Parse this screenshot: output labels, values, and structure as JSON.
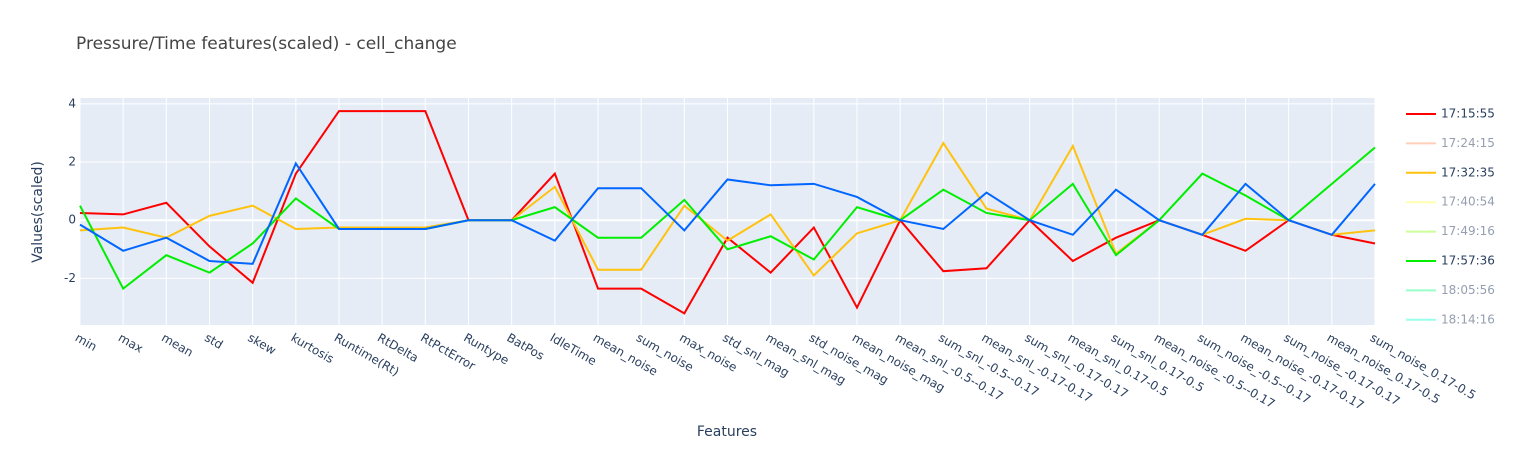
{
  "chart_data": {
    "type": "line",
    "title": "Pressure/Time features(scaled) - cell_change",
    "x_label": "Features",
    "y_label": "Values(scaled)",
    "categories": [
      "min",
      "max",
      "mean",
      "std",
      "skew",
      "kurtosis",
      "Runtime(Rt)",
      "RtDelta",
      "RtPctError",
      "Runtype",
      "BatPos",
      "IdleTime",
      "mean_noise",
      "sum_noise",
      "max_noise",
      "std_snl_mag",
      "mean_snl_mag",
      "std_noise_mag",
      "mean_noise_mag",
      "mean_snl_-0.5--0.17",
      "sum_snl_-0.5--0.17",
      "mean_snl_-0.17-0.17",
      "sum_snl_-0.17-0.17",
      "mean_snl_0.17-0.5",
      "sum_snl_0.17-0.5",
      "mean_noise_-0.5--0.17",
      "sum_noise_-0.5--0.17",
      "mean_noise_-0.17-0.17",
      "sum_noise_-0.17-0.17",
      "mean_noise_0.17-0.5",
      "sum_noise_0.17-0.5"
    ],
    "ylim": [
      -3.6,
      4.2
    ],
    "yticks": [
      -2,
      0,
      2,
      4
    ],
    "grid": true,
    "legend": "right",
    "series": [
      {
        "name": "17:15:55",
        "color": "#ff0000",
        "values": [
          0.25,
          0.2,
          0.6,
          -0.9,
          -2.15,
          1.6,
          3.75,
          3.75,
          3.75,
          0,
          0,
          1.6,
          -2.35,
          -2.35,
          -3.2,
          -0.6,
          -1.8,
          -0.25,
          -3.0,
          0,
          -1.75,
          -1.65,
          0,
          -1.4,
          -0.6,
          0,
          -0.5,
          -1.05,
          0,
          -0.5,
          -0.8
        ]
      },
      {
        "name": "17:24:15",
        "color": "#ffa07a",
        "visible": "legendonly"
      },
      {
        "name": "17:32:35",
        "color": "#ffc20e",
        "values": [
          -0.35,
          -0.25,
          -0.6,
          0.15,
          0.5,
          -0.3,
          -0.25,
          -0.25,
          -0.25,
          0,
          0,
          1.15,
          -1.7,
          -1.7,
          0.5,
          -0.7,
          0.2,
          -1.9,
          -0.45,
          0,
          2.65,
          0.4,
          0,
          2.55,
          -1.15,
          0,
          -0.5,
          0.05,
          0,
          -0.5,
          -0.35
        ]
      },
      {
        "name": "17:40:54",
        "color": "#ffff66",
        "visible": "legendonly"
      },
      {
        "name": "17:49:16",
        "color": "#99ff33",
        "visible": "legendonly"
      },
      {
        "name": "17:57:36",
        "color": "#00ee00",
        "values": [
          0.5,
          -2.35,
          -1.2,
          -1.8,
          -0.8,
          0.75,
          -0.3,
          -0.3,
          -0.3,
          0,
          0,
          0.45,
          -0.6,
          -0.6,
          0.7,
          -1.0,
          -0.55,
          -1.35,
          0.45,
          0,
          1.05,
          0.25,
          0,
          1.25,
          -1.2,
          0,
          1.6,
          0.85,
          0,
          1.25,
          2.5
        ]
      },
      {
        "name": "18:05:56",
        "color": "#33ff99",
        "visible": "legendonly"
      },
      {
        "name": "18:14:16",
        "color": "#33ffdd",
        "visible": "legendonly"
      },
      {
        "color": "#0066ff",
        "values": [
          -0.15,
          -1.05,
          -0.6,
          -1.4,
          -1.5,
          1.95,
          -0.3,
          -0.3,
          -0.3,
          0,
          0,
          -0.7,
          1.1,
          1.1,
          -0.35,
          1.4,
          1.2,
          1.25,
          0.8,
          0,
          -0.3,
          0.95,
          0,
          -0.5,
          1.05,
          0,
          -0.5,
          1.25,
          0,
          -0.5,
          1.25
        ]
      }
    ]
  }
}
